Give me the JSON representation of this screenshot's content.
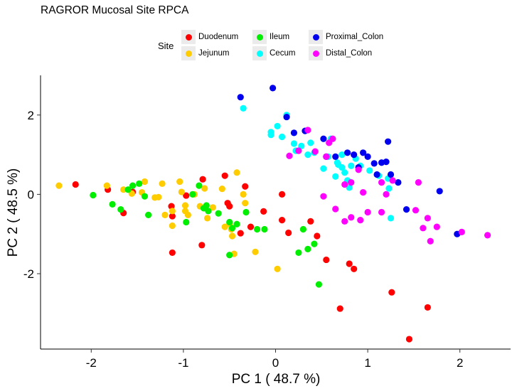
{
  "chart_data": {
    "type": "scatter",
    "title": "RAGROR Mucosal Site RPCA",
    "xlabel": "PC 1 ( 48.7 %)",
    "ylabel": "PC 2 ( 48.5 %)",
    "xlim": [
      -2.55,
      2.55
    ],
    "ylim": [
      -3.9,
      3.0
    ],
    "xticks": [
      -2,
      -1,
      0,
      1,
      2
    ],
    "yticks": [
      -2,
      0,
      2
    ],
    "legend": {
      "title": "Site",
      "placement": "top",
      "entries": [
        "Duodenum",
        "Jejunum",
        "Ileum",
        "Cecum",
        "Proximal_Colon",
        "Distal_Colon"
      ]
    },
    "series": [
      {
        "name": "Duodenum",
        "color": "#ff0000",
        "points": [
          [
            -2.17,
            0.25
          ],
          [
            -1.82,
            0.12
          ],
          [
            -1.65,
            -0.47
          ],
          [
            -1.55,
            0.06
          ],
          [
            -1.12,
            -0.55
          ],
          [
            -1.12,
            -1.47
          ],
          [
            -1.13,
            -0.3
          ],
          [
            -0.97,
            -0.03
          ],
          [
            -0.8,
            -1.28
          ],
          [
            -0.79,
            0.38
          ],
          [
            -0.55,
            0.47
          ],
          [
            -0.52,
            -0.22
          ],
          [
            -0.5,
            -0.3
          ],
          [
            -0.38,
            -0.98
          ],
          [
            -0.33,
            0.2
          ],
          [
            -0.27,
            -0.82
          ],
          [
            -0.13,
            -0.43
          ],
          [
            0.07,
            0.0
          ],
          [
            0.07,
            -0.65
          ],
          [
            0.14,
            -0.97
          ],
          [
            0.38,
            -0.68
          ],
          [
            0.45,
            -1.05
          ],
          [
            0.55,
            -1.65
          ],
          [
            0.8,
            -1.75
          ],
          [
            0.85,
            -1.88
          ],
          [
            0.7,
            -2.88
          ],
          [
            1.26,
            -2.47
          ],
          [
            1.45,
            -3.65
          ],
          [
            1.65,
            -2.85
          ]
        ]
      },
      {
        "name": "Jejunum",
        "color": "#ffcc00",
        "points": [
          [
            -2.35,
            0.22
          ],
          [
            -1.83,
            0.22
          ],
          [
            -1.65,
            0.12
          ],
          [
            -1.56,
            0.02
          ],
          [
            -1.45,
            0.05
          ],
          [
            -1.42,
            0.32
          ],
          [
            -1.31,
            -0.08
          ],
          [
            -1.27,
            -0.07
          ],
          [
            -1.23,
            0.27
          ],
          [
            -1.2,
            -0.52
          ],
          [
            -1.12,
            -0.42
          ],
          [
            -1.12,
            -0.79
          ],
          [
            -1.04,
            0.32
          ],
          [
            -1.02,
            0.06
          ],
          [
            -0.98,
            -0.28
          ],
          [
            -0.98,
            -0.42
          ],
          [
            -0.95,
            -0.52
          ],
          [
            -0.88,
            0.0
          ],
          [
            -0.82,
            -0.3
          ],
          [
            -0.77,
            0.15
          ],
          [
            -0.74,
            -0.6
          ],
          [
            -0.68,
            -0.33
          ],
          [
            -0.58,
            0.14
          ],
          [
            -0.55,
            -0.82
          ],
          [
            -0.5,
            -0.75
          ],
          [
            -0.48,
            -0.88
          ],
          [
            -0.47,
            -1.05
          ],
          [
            -0.45,
            -1.5
          ],
          [
            -0.42,
            0.55
          ],
          [
            -0.35,
            0.0
          ],
          [
            -0.33,
            -0.22
          ],
          [
            -0.22,
            -1.45
          ],
          [
            0.02,
            -1.88
          ]
        ]
      },
      {
        "name": "Ileum",
        "color": "#00ee00",
        "points": [
          [
            -1.98,
            -0.02
          ],
          [
            -1.77,
            -0.25
          ],
          [
            -1.68,
            -0.38
          ],
          [
            -1.6,
            0.12
          ],
          [
            -1.55,
            0.22
          ],
          [
            -1.48,
            0.27
          ],
          [
            -1.42,
            -0.05
          ],
          [
            -1.38,
            -0.52
          ],
          [
            -0.97,
            -0.7
          ],
          [
            -0.9,
            0.0
          ],
          [
            -0.83,
            0.22
          ],
          [
            -0.78,
            -0.35
          ],
          [
            -0.75,
            -0.28
          ],
          [
            -0.73,
            -0.42
          ],
          [
            -0.62,
            -0.48
          ],
          [
            -0.5,
            -1.53
          ],
          [
            -0.5,
            -0.7
          ],
          [
            -0.47,
            -0.85
          ],
          [
            -0.42,
            -0.75
          ],
          [
            -0.32,
            -0.45
          ],
          [
            -0.2,
            -0.88
          ],
          [
            -0.12,
            -0.88
          ],
          [
            0.25,
            -1.47
          ],
          [
            0.3,
            -0.88
          ],
          [
            0.35,
            -1.38
          ],
          [
            0.42,
            -1.25
          ],
          [
            0.47,
            -2.27
          ]
        ]
      },
      {
        "name": "Cecum",
        "color": "#00ffff",
        "points": [
          [
            -0.35,
            2.17
          ],
          [
            -0.05,
            1.5
          ],
          [
            -0.05,
            1.57
          ],
          [
            0.02,
            1.72
          ],
          [
            0.07,
            1.45
          ],
          [
            0.12,
            2.0
          ],
          [
            0.2,
            1.28
          ],
          [
            0.22,
            1.1
          ],
          [
            0.28,
            1.22
          ],
          [
            0.35,
            1.0
          ],
          [
            0.38,
            1.3
          ],
          [
            0.42,
            1.05
          ],
          [
            0.52,
            0.65
          ],
          [
            0.57,
            0.95
          ],
          [
            0.6,
            1.4
          ],
          [
            0.65,
            0.45
          ],
          [
            0.67,
            0.8
          ],
          [
            0.68,
            0.75
          ],
          [
            0.72,
            1.0
          ],
          [
            0.72,
            0.68
          ],
          [
            0.75,
            0.55
          ],
          [
            0.78,
            0.35
          ],
          [
            0.8,
            0.17
          ],
          [
            0.82,
            0.72
          ],
          [
            0.87,
            0.9
          ],
          [
            0.92,
            0.72
          ],
          [
            1.02,
            0.6
          ],
          [
            1.12,
            0.47
          ],
          [
            1.22,
            0.4
          ],
          [
            1.23,
            0.15
          ],
          [
            1.25,
            -0.6
          ]
        ]
      },
      {
        "name": "Proximal_Colon",
        "color": "#0000ee",
        "points": [
          [
            -0.38,
            2.45
          ],
          [
            -0.03,
            2.68
          ],
          [
            0.12,
            1.95
          ],
          [
            0.2,
            1.55
          ],
          [
            0.32,
            1.6
          ],
          [
            0.52,
            1.4
          ],
          [
            0.55,
            0.95
          ],
          [
            0.65,
            0.95
          ],
          [
            0.78,
            1.05
          ],
          [
            0.85,
            1.0
          ],
          [
            0.9,
            0.68
          ],
          [
            0.95,
            1.05
          ],
          [
            1.0,
            0.95
          ],
          [
            1.07,
            0.78
          ],
          [
            1.1,
            0.5
          ],
          [
            1.15,
            0.8
          ],
          [
            1.2,
            0.82
          ],
          [
            1.22,
            1.33
          ],
          [
            1.25,
            0.5
          ],
          [
            1.33,
            0.3
          ],
          [
            1.42,
            -0.38
          ],
          [
            1.78,
            0.08
          ],
          [
            1.97,
            -1.0
          ]
        ]
      },
      {
        "name": "Distal_Colon",
        "color": "#ff00ff",
        "points": [
          [
            0.15,
            0.97
          ],
          [
            0.25,
            1.1
          ],
          [
            0.35,
            1.62
          ],
          [
            0.43,
            1.08
          ],
          [
            0.55,
            0.95
          ],
          [
            0.58,
            1.3
          ],
          [
            0.62,
            1.4
          ],
          [
            0.75,
            0.25
          ],
          [
            0.82,
            0.3
          ],
          [
            0.9,
            0.62
          ],
          [
            0.95,
            0.05
          ],
          [
            0.52,
            -0.05
          ],
          [
            0.65,
            -0.37
          ],
          [
            0.75,
            -0.68
          ],
          [
            0.82,
            -0.58
          ],
          [
            0.92,
            -0.65
          ],
          [
            1.0,
            -0.45
          ],
          [
            1.15,
            0.3
          ],
          [
            1.15,
            -0.45
          ],
          [
            1.2,
            0.0
          ],
          [
            1.27,
            0.35
          ],
          [
            1.52,
            -0.4
          ],
          [
            1.55,
            0.3
          ],
          [
            1.6,
            -0.85
          ],
          [
            1.65,
            -0.6
          ],
          [
            1.75,
            -0.82
          ],
          [
            1.68,
            -1.18
          ],
          [
            2.02,
            -0.95
          ],
          [
            2.3,
            -1.03
          ]
        ]
      }
    ]
  }
}
